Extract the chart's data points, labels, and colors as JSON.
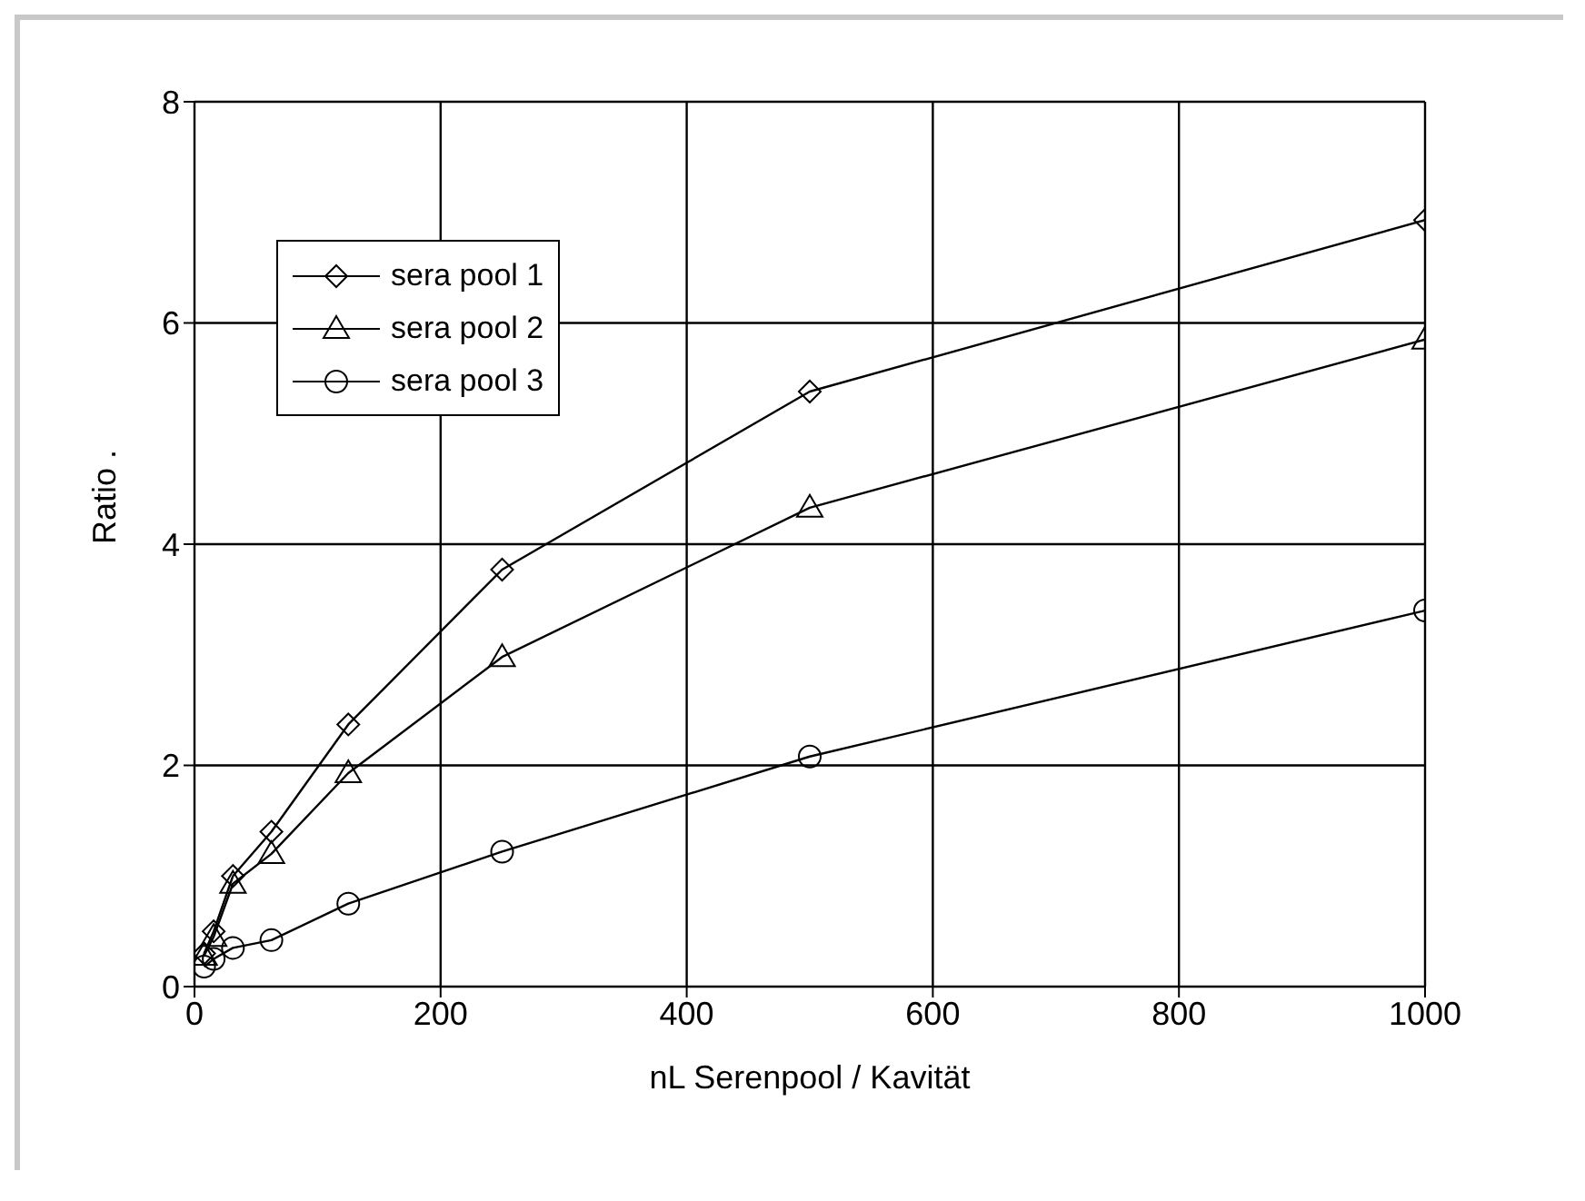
{
  "chart_data": {
    "type": "line",
    "xlabel": "nL Serenpool / Kavität",
    "ylabel": "Ratio  .",
    "series": [
      {
        "name": "sera pool 1",
        "color": "#000000",
        "marker": "diamond",
        "x": [
          7.8,
          15.6,
          31.25,
          62.5,
          125,
          250,
          500,
          1000
        ],
        "values": [
          0.3,
          0.5,
          1.0,
          1.4,
          2.37,
          3.77,
          5.38,
          6.93
        ]
      },
      {
        "name": "sera pool 2",
        "color": "#000000",
        "marker": "triangle",
        "x": [
          7.8,
          15.6,
          31.25,
          62.5,
          125,
          250,
          500,
          1000
        ],
        "values": [
          0.28,
          0.45,
          0.93,
          1.2,
          1.93,
          2.98,
          4.33,
          5.85
        ]
      },
      {
        "name": "sera pool 3",
        "color": "#000000",
        "marker": "circle",
        "x": [
          7.8,
          15.6,
          31.25,
          62.5,
          125,
          250,
          500,
          1000
        ],
        "values": [
          0.18,
          0.25,
          0.35,
          0.42,
          0.75,
          1.22,
          2.08,
          3.4
        ]
      }
    ],
    "xlim": [
      0,
      1000
    ],
    "xticks": [
      0,
      200,
      400,
      600,
      800,
      1000
    ],
    "ylim": [
      0,
      8
    ],
    "yticks": [
      0,
      2,
      4,
      6,
      8
    ],
    "grid": true,
    "legend": "top left",
    "line_style": "solid"
  }
}
